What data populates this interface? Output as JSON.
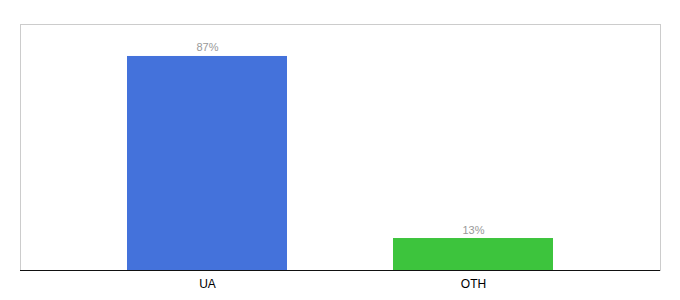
{
  "chart_data": {
    "type": "bar",
    "categories": [
      "UA",
      "OTH"
    ],
    "values": [
      87,
      13
    ],
    "value_labels": [
      "87%",
      "13%"
    ],
    "colors": [
      "#4472db",
      "#3dc43d"
    ],
    "ylim": [
      0,
      100
    ],
    "data_labels": true,
    "tick_labels": "x",
    "grid": false
  }
}
